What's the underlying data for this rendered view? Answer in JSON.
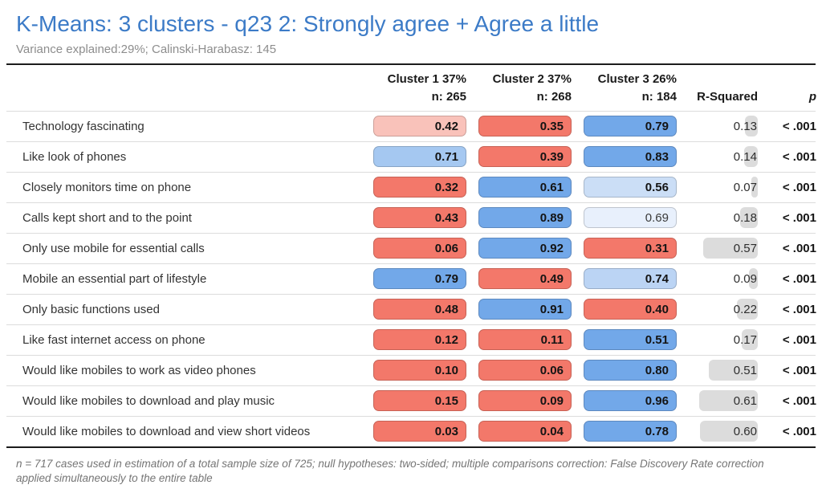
{
  "title": "K-Means: 3 clusters - q23 2: Strongly agree + Agree a little",
  "subtitle": "Variance explained:29%; Calinski-Harabasz: 145",
  "table": {
    "cluster_columns": [
      {
        "line1": "Cluster 1 37%",
        "line2": "n: 265"
      },
      {
        "line1": "Cluster 2 37%",
        "line2": "n: 268"
      },
      {
        "line1": "Cluster 3 26%",
        "line2": "n: 184"
      }
    ],
    "r_squared_header": "R-Squared",
    "p_header": "p",
    "rows": [
      {
        "label": "Technology fascinating",
        "cells": [
          {
            "value": "0.42",
            "color": "#f9c2ba"
          },
          {
            "value": "0.35",
            "color": "#f3786a"
          },
          {
            "value": "0.79",
            "color": "#72a8e9"
          }
        ],
        "r_squared": "0.13",
        "p": "< .001"
      },
      {
        "label": "Like look of phones",
        "cells": [
          {
            "value": "0.71",
            "color": "#a5c8f1"
          },
          {
            "value": "0.39",
            "color": "#f3786a"
          },
          {
            "value": "0.83",
            "color": "#72a8e9"
          }
        ],
        "r_squared": "0.14",
        "p": "< .001"
      },
      {
        "label": "Closely monitors time on phone",
        "cells": [
          {
            "value": "0.32",
            "color": "#f3786a"
          },
          {
            "value": "0.61",
            "color": "#72a8e9"
          },
          {
            "value": "0.56",
            "color": "#cbdef6"
          }
        ],
        "r_squared": "0.07",
        "p": "< .001"
      },
      {
        "label": "Calls kept short and to the point",
        "cells": [
          {
            "value": "0.43",
            "color": "#f3786a"
          },
          {
            "value": "0.89",
            "color": "#72a8e9"
          },
          {
            "value": "0.69",
            "color": "#e8f0fc",
            "bold": false
          }
        ],
        "r_squared": "0.18",
        "p": "< .001"
      },
      {
        "label": "Only use mobile for essential calls",
        "cells": [
          {
            "value": "0.06",
            "color": "#f3786a"
          },
          {
            "value": "0.92",
            "color": "#72a8e9"
          },
          {
            "value": "0.31",
            "color": "#f3786a"
          }
        ],
        "r_squared": "0.57",
        "p": "< .001"
      },
      {
        "label": "Mobile an essential part of lifestyle",
        "cells": [
          {
            "value": "0.79",
            "color": "#72a8e9"
          },
          {
            "value": "0.49",
            "color": "#f3786a"
          },
          {
            "value": "0.74",
            "color": "#bbd4f4"
          }
        ],
        "r_squared": "0.09",
        "p": "< .001"
      },
      {
        "label": "Only basic functions used",
        "cells": [
          {
            "value": "0.48",
            "color": "#f3786a"
          },
          {
            "value": "0.91",
            "color": "#72a8e9"
          },
          {
            "value": "0.40",
            "color": "#f3786a"
          }
        ],
        "r_squared": "0.22",
        "p": "< .001"
      },
      {
        "label": "Like fast internet access on phone",
        "cells": [
          {
            "value": "0.12",
            "color": "#f3786a"
          },
          {
            "value": "0.11",
            "color": "#f3786a"
          },
          {
            "value": "0.51",
            "color": "#72a8e9"
          }
        ],
        "r_squared": "0.17",
        "p": "< .001"
      },
      {
        "label": "Would like mobiles to work as video phones",
        "cells": [
          {
            "value": "0.10",
            "color": "#f3786a"
          },
          {
            "value": "0.06",
            "color": "#f3786a"
          },
          {
            "value": "0.80",
            "color": "#72a8e9"
          }
        ],
        "r_squared": "0.51",
        "p": "< .001"
      },
      {
        "label": "Would like mobiles to download and play music",
        "cells": [
          {
            "value": "0.15",
            "color": "#f3786a"
          },
          {
            "value": "0.09",
            "color": "#f3786a"
          },
          {
            "value": "0.96",
            "color": "#72a8e9"
          }
        ],
        "r_squared": "0.61",
        "p": "< .001"
      },
      {
        "label": "Would like mobiles to download and view short videos",
        "cells": [
          {
            "value": "0.03",
            "color": "#f3786a"
          },
          {
            "value": "0.04",
            "color": "#f3786a"
          },
          {
            "value": "0.78",
            "color": "#72a8e9"
          }
        ],
        "r_squared": "0.60",
        "p": "< .001"
      }
    ]
  },
  "footnote": "n = 717 cases used in estimation of a total sample size of 725; null hypotheses: two-sided; multiple comparisons correction: False Discovery Rate correction applied simultaneously to the entire table",
  "colors": {
    "title_blue": "#3c7bc7",
    "subtitle_gray": "#8d8d8d",
    "cell_red": "#f3786a",
    "cell_pink": "#f9c2ba",
    "cell_blue": "#72a8e9",
    "cell_light_blue": "#a5c8f1",
    "cell_pale_blue": "#cbdef6",
    "r_squared_bar": "#dcdcdc",
    "rule_dark": "#1c1c1c"
  },
  "chart_data": {
    "type": "table",
    "title": "K-Means: 3 clusters - q23 2: Strongly agree + Agree a little",
    "subtitle": "Variance explained:29%; Calinski-Harabasz: 145",
    "row_labels": [
      "Technology fascinating",
      "Like look of phones",
      "Closely monitors time on phone",
      "Calls kept short and to the point",
      "Only use mobile for essential calls",
      "Mobile an essential part of lifestyle",
      "Only basic functions used",
      "Like fast internet access on phone",
      "Would like mobiles to work as video phones",
      "Would like mobiles to download and play music",
      "Would like mobiles to download and view short videos"
    ],
    "series": [
      {
        "name": "Cluster 1",
        "share_pct": 37,
        "n": 265,
        "values": [
          0.42,
          0.71,
          0.32,
          0.43,
          0.06,
          0.79,
          0.48,
          0.12,
          0.1,
          0.15,
          0.03
        ]
      },
      {
        "name": "Cluster 2",
        "share_pct": 37,
        "n": 268,
        "values": [
          0.35,
          0.39,
          0.61,
          0.89,
          0.92,
          0.49,
          0.91,
          0.11,
          0.06,
          0.09,
          0.04
        ]
      },
      {
        "name": "Cluster 3",
        "share_pct": 26,
        "n": 184,
        "values": [
          0.79,
          0.83,
          0.56,
          0.69,
          0.31,
          0.74,
          0.4,
          0.51,
          0.8,
          0.96,
          0.78
        ]
      }
    ],
    "r_squared": [
      0.13,
      0.14,
      0.07,
      0.18,
      0.57,
      0.09,
      0.22,
      0.17,
      0.51,
      0.61,
      0.6
    ],
    "p_values": [
      "< .001",
      "< .001",
      "< .001",
      "< .001",
      "< .001",
      "< .001",
      "< .001",
      "< .001",
      "< .001",
      "< .001",
      "< .001"
    ],
    "cell_color_coding": "red = below average / disagree, blue = above average / agree, saturation = strength; gray bar width proportional to R-Squared",
    "layout": {
      "grid": false,
      "legend": false
    }
  }
}
